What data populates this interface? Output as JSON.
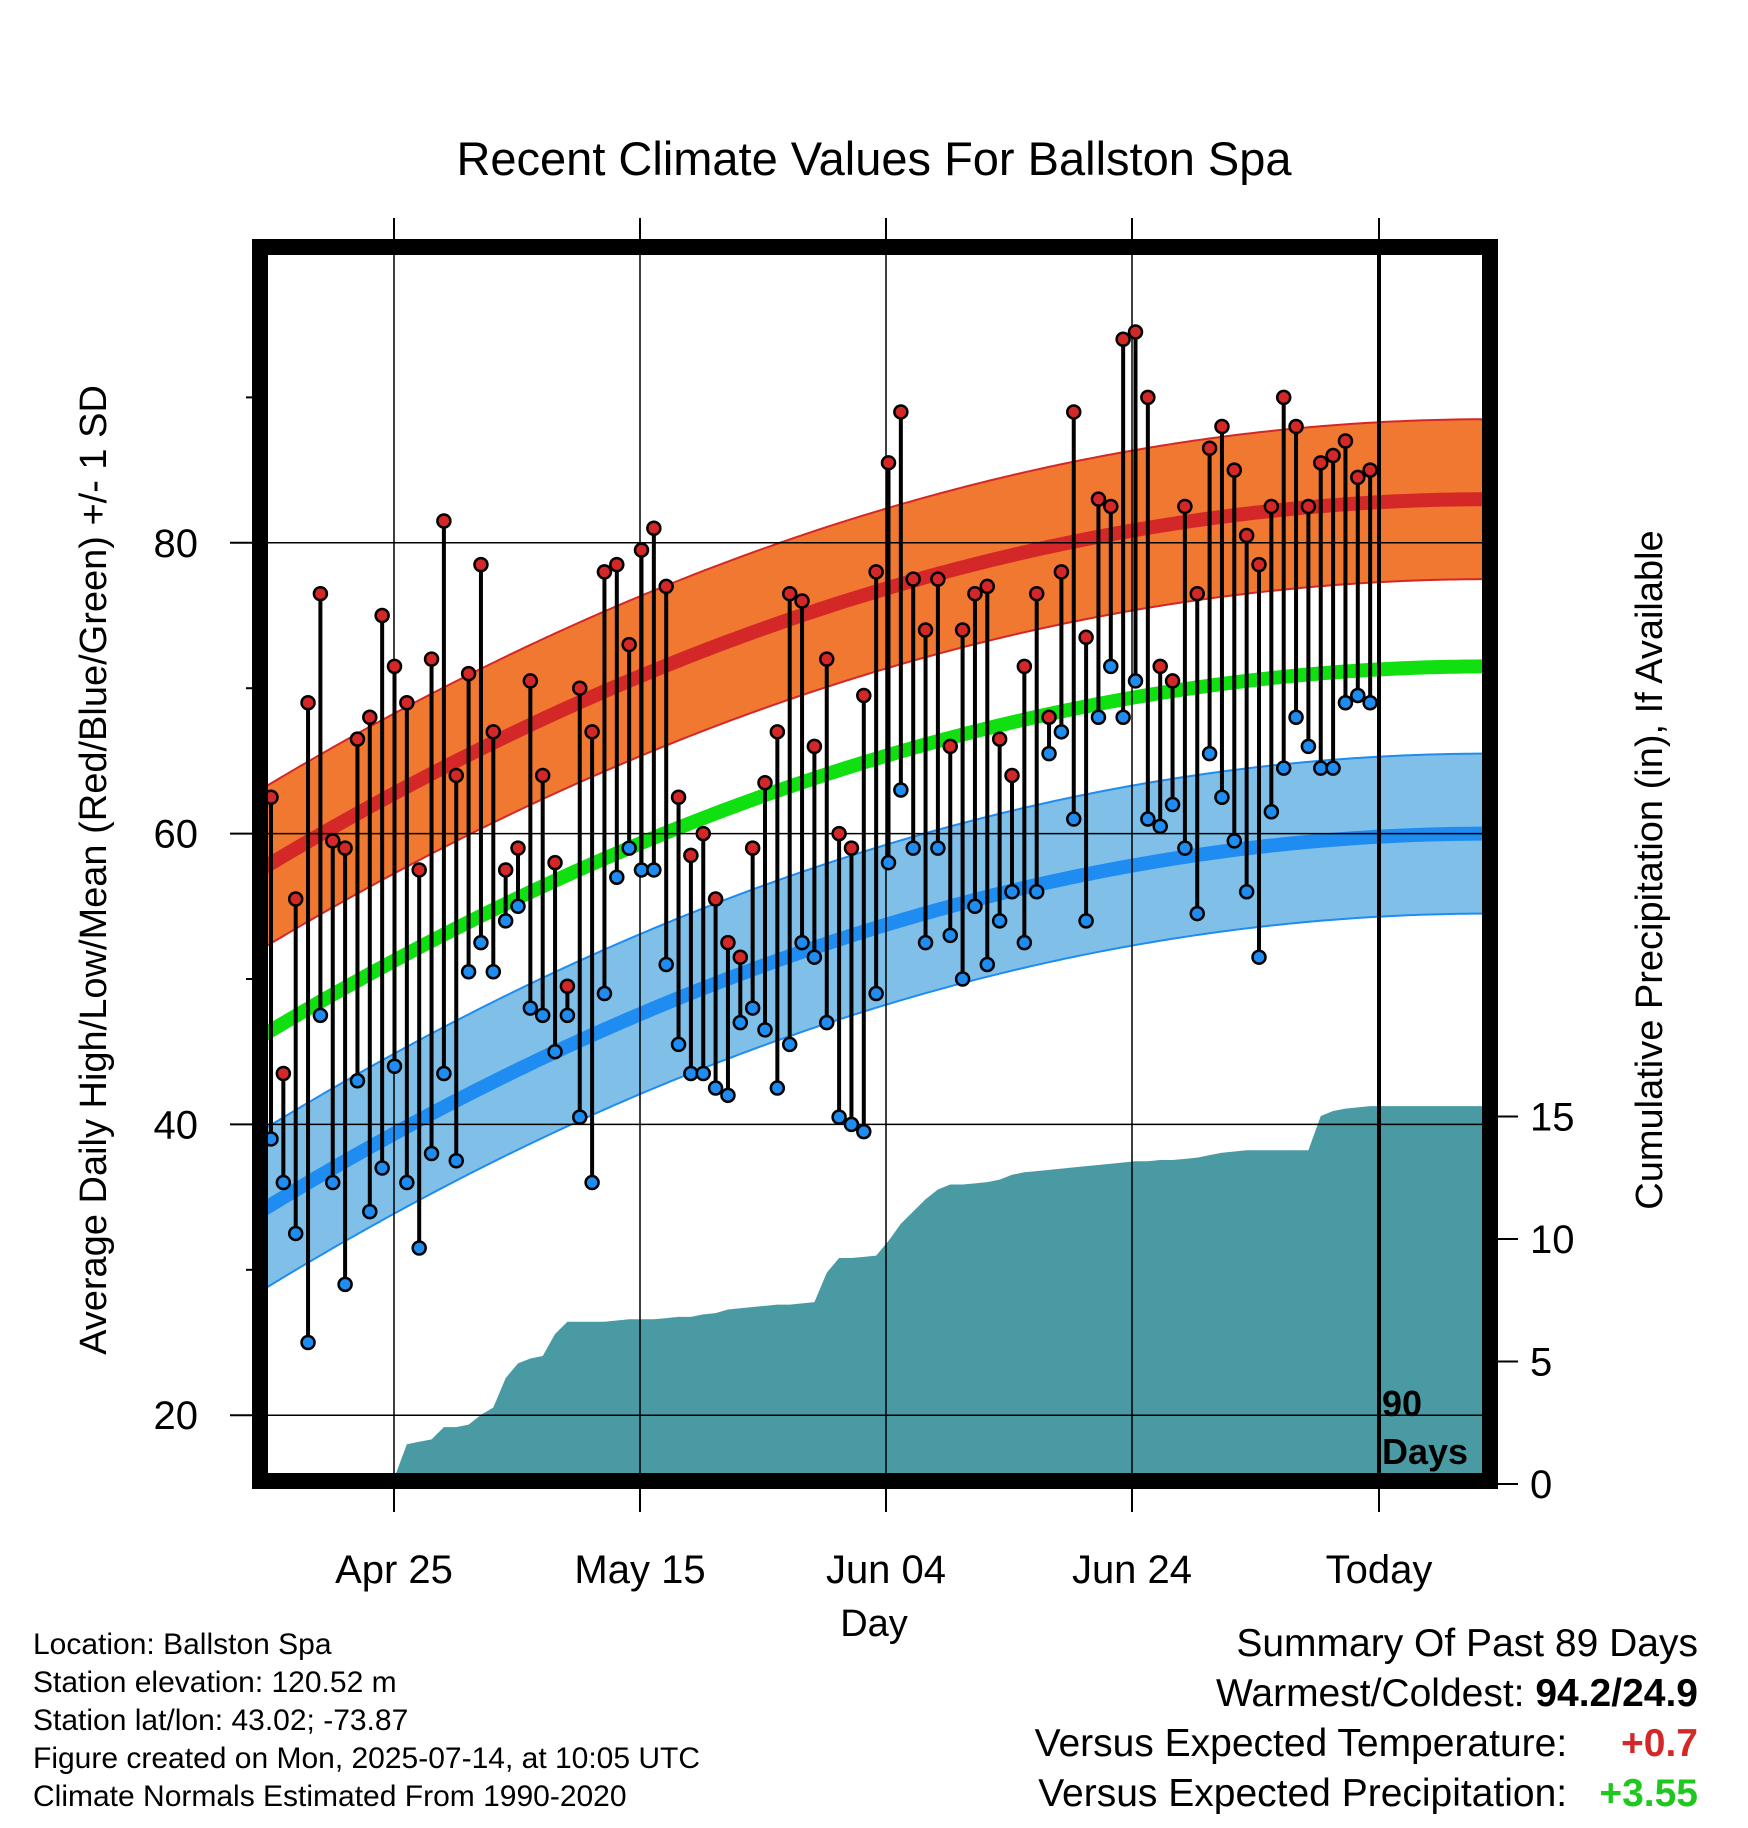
{
  "chart_data": {
    "type": "line",
    "title": "Recent Climate Values For Ballston Spa",
    "xlabel": "Day",
    "ylabel": "Average Daily High/Low/Mean (Red/Blue/Green) +/- 1 SD",
    "y2label": "Cumulative Precipitation (in), If Available",
    "x_tick_labels": [
      "Apr 25",
      "May 15",
      "Jun 04",
      "Jun 24",
      "Today"
    ],
    "y_ticks": [
      20,
      40,
      60,
      80
    ],
    "y2_ticks": [
      0,
      5,
      10,
      15
    ],
    "ylim": [
      15.5,
      99
    ],
    "y2lim": [
      0,
      15
    ],
    "grid": true,
    "today_marker_label": "90\nDays",
    "colors": {
      "high_band": "#f07830",
      "high_mean": "#d42828",
      "low_band": "#80c0e8",
      "low_mean": "#1e8cf0",
      "mean": "#10e010",
      "precip": "#4a9aa4",
      "high_dot": "#d42828",
      "low_dot": "#1e8cf0"
    },
    "normal_high": {
      "start": 57.5,
      "end": 83
    },
    "normal_low": {
      "start": 34,
      "end": 60
    },
    "normal_mean": {
      "start": 46,
      "end": 71.5
    },
    "normal_sd": 5.5,
    "daily_high": [
      62.5,
      43.5,
      55.5,
      69,
      76.5,
      59.5,
      59,
      66.5,
      68,
      75,
      71.5,
      69,
      57.5,
      72,
      81.5,
      64,
      71,
      78.5,
      67,
      57.5,
      59,
      70.5,
      64,
      58,
      49.5,
      70,
      67,
      78,
      78.5,
      73,
      79.5,
      81,
      77,
      62.5,
      58.5,
      60,
      55.5,
      52.5,
      51.5,
      59,
      63.5,
      67,
      76.5,
      76,
      66,
      72,
      60,
      59,
      69.5,
      78,
      85.5,
      89,
      77.5,
      74,
      77.5,
      66,
      74,
      76.5,
      77,
      66.5,
      64,
      71.5,
      76.5,
      68,
      78,
      89,
      73.5,
      83,
      82.5,
      94,
      94.5,
      90,
      71.5,
      70.5,
      82.5,
      76.5,
      86.5,
      88,
      85,
      80.5,
      78.5,
      82.5,
      90,
      88,
      82.5,
      85.5,
      86,
      87,
      84.5,
      85
    ],
    "daily_low": [
      39,
      36,
      32.5,
      25,
      47.5,
      36,
      29,
      43,
      34,
      37,
      44,
      36,
      31.5,
      38,
      43.5,
      37.5,
      50.5,
      52.5,
      50.5,
      54,
      55,
      48,
      47.5,
      45,
      47.5,
      40.5,
      36,
      49,
      57,
      59,
      57.5,
      57.5,
      51,
      45.5,
      43.5,
      43.5,
      42.5,
      42,
      47,
      48,
      46.5,
      42.5,
      45.5,
      52.5,
      51.5,
      47,
      40.5,
      40,
      39.5,
      49,
      58,
      63,
      59,
      52.5,
      59,
      53,
      50,
      55,
      51,
      54,
      56,
      52.5,
      56,
      65.5,
      67,
      61,
      54,
      68,
      71.5,
      68,
      70.5,
      61,
      60.5,
      62,
      59,
      54.5,
      65.5,
      62.5,
      59.5,
      56,
      51.5,
      61.5,
      64.5,
      68,
      66,
      64.5,
      64.5,
      69,
      69.5,
      69
    ],
    "precip_cumulative": [
      0,
      0,
      0,
      0,
      0,
      0,
      0.05,
      0.05,
      0.1,
      0.15,
      0.15,
      1.5,
      1.6,
      1.7,
      2.2,
      2.2,
      2.3,
      2.7,
      3,
      4.2,
      4.8,
      5,
      5.1,
      6,
      6.5,
      6.5,
      6.5,
      6.5,
      6.55,
      6.6,
      6.6,
      6.6,
      6.65,
      6.7,
      6.7,
      6.8,
      6.85,
      7,
      7.05,
      7.1,
      7.15,
      7.2,
      7.2,
      7.25,
      7.3,
      8.5,
      9.1,
      9.1,
      9.15,
      9.2,
      9.8,
      10.5,
      11,
      11.5,
      11.9,
      12.1,
      12.1,
      12.15,
      12.2,
      12.3,
      12.5,
      12.6,
      12.65,
      12.7,
      12.75,
      12.8,
      12.85,
      12.9,
      12.95,
      13,
      13.05,
      13.05,
      13.1,
      13.1,
      13.15,
      13.2,
      13.3,
      13.4,
      13.45,
      13.5,
      13.5,
      13.5,
      13.5,
      13.5,
      13.5,
      14.9,
      15.1,
      15.2,
      15.25,
      15.3
    ]
  },
  "info": {
    "location": "Location: Ballston Spa",
    "elevation": "Station elevation: 120.52 m",
    "latlon": "Station lat/lon: 43.02; -73.87",
    "created": "Figure created on Mon, 2025-07-14, at 10:05 UTC",
    "normals": "Climate Normals Estimated From 1990-2020"
  },
  "summary": {
    "heading": "Summary Of Past 89 Days",
    "warmest_coldest_label": "Warmest/Coldest:",
    "warmest_coldest_value": "94.2/24.9",
    "temp_label": "Versus Expected Temperature:",
    "temp_value": "+0.7",
    "temp_color": "#d42828",
    "precip_label": "Versus Expected Precipitation:",
    "precip_value": "+3.55",
    "precip_color": "#1ec81e"
  }
}
